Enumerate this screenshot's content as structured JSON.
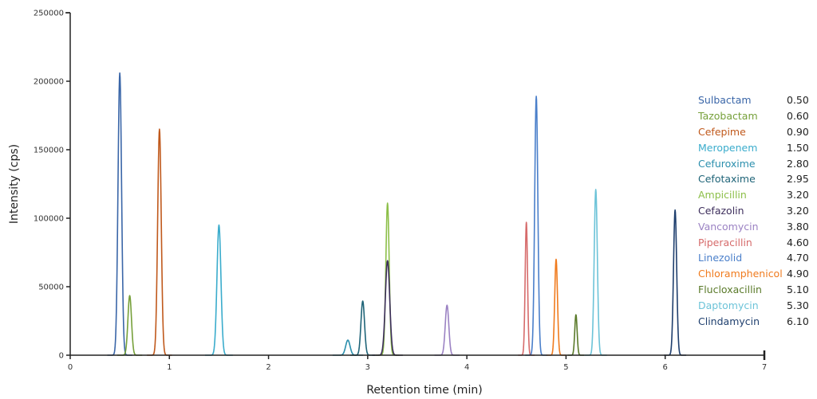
{
  "chart_data": {
    "type": "line",
    "title": "",
    "xlabel": "Retention time (min)",
    "ylabel": "Intensity (cps)",
    "xlim": [
      0,
      7
    ],
    "ylim": [
      0,
      250000
    ],
    "x_ticks": [
      0,
      1,
      2,
      3,
      4,
      5,
      6,
      7
    ],
    "y_ticks": [
      0,
      50000,
      100000,
      150000,
      200000,
      250000
    ],
    "grid": false,
    "legend_position": "right",
    "series": [
      {
        "name": "Sulbactam",
        "retention_time": 0.5,
        "peak_height": 206000,
        "width": 0.018,
        "color": "#3a66a8"
      },
      {
        "name": "Tazobactam",
        "retention_time": 0.6,
        "peak_height": 43500,
        "width": 0.018,
        "color": "#76a03a"
      },
      {
        "name": "Cefepime",
        "retention_time": 0.9,
        "peak_height": 165000,
        "width": 0.018,
        "color": "#c0591c"
      },
      {
        "name": "Meropenem",
        "retention_time": 1.5,
        "peak_height": 95000,
        "width": 0.02,
        "color": "#3aaccc"
      },
      {
        "name": "Cefuroxime",
        "retention_time": 2.8,
        "peak_height": 11000,
        "width": 0.022,
        "color": "#2b8fad"
      },
      {
        "name": "Cefotaxime",
        "retention_time": 2.95,
        "peak_height": 39500,
        "width": 0.018,
        "color": "#1f6478"
      },
      {
        "name": "Ampicillin",
        "retention_time": 3.2,
        "peak_height": 111000,
        "width": 0.017,
        "color": "#8cbf48"
      },
      {
        "name": "Cefazolin",
        "retention_time": 3.2,
        "peak_height": 69000,
        "width": 0.022,
        "color": "#3d2e5c"
      },
      {
        "name": "Vancomycin",
        "retention_time": 3.8,
        "peak_height": 36500,
        "width": 0.018,
        "color": "#9b82c3"
      },
      {
        "name": "Piperacillin",
        "retention_time": 4.6,
        "peak_height": 97000,
        "width": 0.012,
        "color": "#d66b6b"
      },
      {
        "name": "Linezolid",
        "retention_time": 4.7,
        "peak_height": 189000,
        "width": 0.016,
        "color": "#4a7fca"
      },
      {
        "name": "Chloramphenicol",
        "retention_time": 4.9,
        "peak_height": 70000,
        "width": 0.014,
        "color": "#f07b1e"
      },
      {
        "name": "Flucloxacillin",
        "retention_time": 5.1,
        "peak_height": 29500,
        "width": 0.012,
        "color": "#5a7a2a"
      },
      {
        "name": "Daptomycin",
        "retention_time": 5.3,
        "peak_height": 121000,
        "width": 0.016,
        "color": "#6cc3d8"
      },
      {
        "name": "Clindamycin",
        "retention_time": 6.1,
        "peak_height": 106000,
        "width": 0.016,
        "color": "#1f3f6e"
      }
    ]
  },
  "legend": {
    "items": [
      {
        "name": "Sulbactam",
        "rt": "0.50"
      },
      {
        "name": "Tazobactam",
        "rt": "0.60"
      },
      {
        "name": "Cefepime",
        "rt": "0.90"
      },
      {
        "name": "Meropenem",
        "rt": "1.50"
      },
      {
        "name": "Cefuroxime",
        "rt": "2.80"
      },
      {
        "name": "Cefotaxime",
        "rt": "2.95"
      },
      {
        "name": "Ampicillin",
        "rt": "3.20"
      },
      {
        "name": "Cefazolin",
        "rt": "3.20"
      },
      {
        "name": "Vancomycin",
        "rt": "3.80"
      },
      {
        "name": "Piperacillin",
        "rt": "4.60"
      },
      {
        "name": "Linezolid",
        "rt": "4.70"
      },
      {
        "name": "Chloramphenicol",
        "rt": "4.90"
      },
      {
        "name": "Flucloxacillin",
        "rt": "5.10"
      },
      {
        "name": "Daptomycin",
        "rt": "5.30"
      },
      {
        "name": "Clindamycin",
        "rt": "6.10"
      }
    ]
  },
  "axes": {
    "x_title": "Retention time (min)",
    "y_title": "Intensity (cps)",
    "x_tick_labels": [
      "0",
      "1",
      "2",
      "3",
      "4",
      "5",
      "6",
      "7"
    ],
    "y_tick_labels": [
      "0",
      "50000",
      "100000",
      "150000",
      "200000",
      "250000"
    ]
  }
}
